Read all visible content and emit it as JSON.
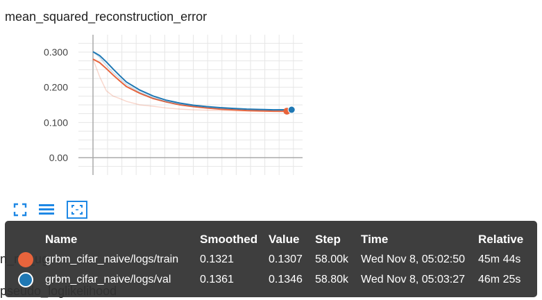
{
  "chart": {
    "title": "mean_squared_reconstruction_error",
    "y_ticks": [
      "0.300",
      "0.200",
      "0.100",
      "0.00"
    ]
  },
  "chart_data": {
    "type": "line",
    "title": "mean_squared_reconstruction_error",
    "xlabel": "",
    "ylabel": "",
    "xlim": [
      0,
      60000
    ],
    "ylim": [
      -0.05,
      0.35
    ],
    "y_ticks": [
      0.0,
      0.1,
      0.2,
      0.3
    ],
    "grid": true,
    "series": [
      {
        "name": "grbm_cifar_naive/logs/train",
        "color": "#e8643c",
        "x": [
          0,
          2000,
          4000,
          6000,
          8000,
          10000,
          14000,
          18000,
          22000,
          26000,
          30000,
          34000,
          38000,
          42000,
          46000,
          50000,
          54000,
          58000
        ],
        "smoothed": [
          0.28,
          0.27,
          0.253,
          0.235,
          0.218,
          0.202,
          0.183,
          0.168,
          0.158,
          0.15,
          0.145,
          0.141,
          0.138,
          0.136,
          0.134,
          0.133,
          0.132,
          0.1321
        ],
        "raw": [
          0.28,
          0.23,
          0.19,
          0.175,
          0.168,
          0.16,
          0.15,
          0.146,
          0.141,
          0.138,
          0.136,
          0.135,
          0.134,
          0.133,
          0.132,
          0.131,
          0.131,
          0.1307
        ],
        "last": {
          "smoothed": "0.1321",
          "value": "0.1307",
          "step": "58.00k",
          "time": "Wed Nov 8, 05:02:50",
          "relative": "45m 44s"
        }
      },
      {
        "name": "grbm_cifar_naive/logs/val",
        "color": "#1f78b4",
        "x": [
          0,
          2000,
          4000,
          6000,
          8000,
          10000,
          14000,
          18000,
          22000,
          26000,
          30000,
          34000,
          38000,
          42000,
          46000,
          50000,
          54000,
          58800
        ],
        "smoothed": [
          0.301,
          0.29,
          0.272,
          0.252,
          0.233,
          0.215,
          0.192,
          0.175,
          0.163,
          0.155,
          0.149,
          0.145,
          0.142,
          0.14,
          0.138,
          0.137,
          0.136,
          0.1361
        ],
        "raw": [
          0.301,
          0.285,
          0.262,
          0.242,
          0.225,
          0.208,
          0.186,
          0.17,
          0.159,
          0.152,
          0.147,
          0.143,
          0.14,
          0.138,
          0.137,
          0.136,
          0.135,
          0.1346
        ],
        "last": {
          "smoothed": "0.1361",
          "value": "0.1346",
          "step": "58.80k",
          "time": "Wed Nov 8, 05:03:27",
          "relative": "46m 25s"
        }
      }
    ]
  },
  "toolbar": {
    "fit_icon": "fullscreen-icon",
    "list_icon": "list-icon",
    "expand_icon": "fit-domain-icon"
  },
  "background": {
    "label_1": "n_nd_ug",
    "label_2": "pseudo_loglikelihood"
  },
  "tooltip": {
    "headers": {
      "name": "Name",
      "smoothed": "Smoothed",
      "value": "Value",
      "step": "Step",
      "time": "Time",
      "relative": "Relative"
    },
    "rows": [
      {
        "name": "grbm_cifar_naive/logs/train",
        "smoothed": "0.1321",
        "value": "0.1307",
        "step": "58.00k",
        "time": "Wed Nov 8, 05:02:50",
        "relative": "45m 44s",
        "color": "#e8643c"
      },
      {
        "name": "grbm_cifar_naive/logs/val",
        "smoothed": "0.1361",
        "value": "0.1346",
        "step": "58.80k",
        "time": "Wed Nov 8, 05:03:27",
        "relative": "46m 25s",
        "color": "#1f78b4"
      }
    ]
  }
}
